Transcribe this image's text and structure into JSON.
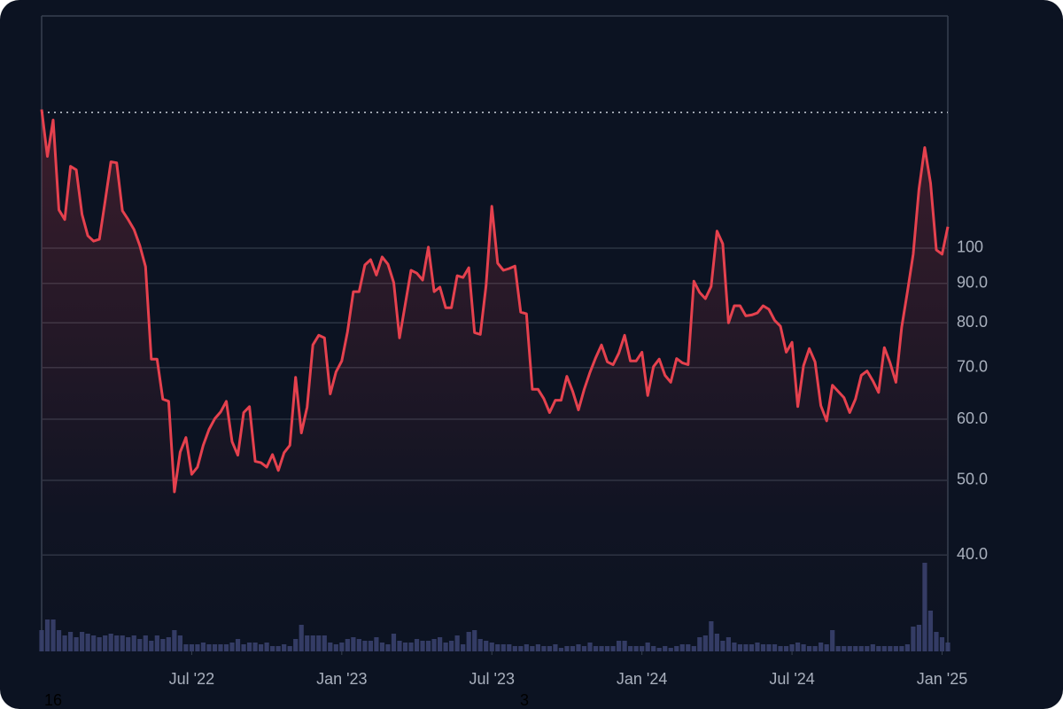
{
  "chart_data": {
    "type": "line",
    "log_scale": true,
    "grid": true,
    "color": "#e5414e",
    "reference_line": 150,
    "xlim": [
      0,
      157
    ],
    "xticks": [
      {
        "value": 26,
        "label": "Jul '22"
      },
      {
        "value": 52,
        "label": "Jan '23"
      },
      {
        "value": 78,
        "label": "Jul '23"
      },
      {
        "value": 104,
        "label": "Jan '24"
      },
      {
        "value": 130,
        "label": "Jul '24"
      },
      {
        "value": 156,
        "label": "Jan '25"
      }
    ],
    "ylim": [
      30,
      200
    ],
    "yticks": [
      {
        "value": 40,
        "label": "40.0"
      },
      {
        "value": 50,
        "label": "50.0"
      },
      {
        "value": 60,
        "label": "60.0"
      },
      {
        "value": 70,
        "label": "70.0"
      },
      {
        "value": 80,
        "label": "80.0"
      },
      {
        "value": 90,
        "label": "90.0"
      },
      100
    ],
    "values": [
      151.3,
      131.5,
      146.6,
      112.1,
      108.9,
      127.7,
      126.3,
      110.6,
      103.8,
      102.1,
      102.7,
      115.1,
      129.4,
      129.0,
      111.8,
      108.9,
      105.7,
      100.8,
      94.6,
      71.8,
      71.8,
      63.7,
      63.3,
      48.3,
      54.4,
      56.8,
      50.9,
      52.0,
      55.5,
      58.2,
      60.1,
      61.3,
      63.3,
      56.1,
      53.9,
      61.2,
      62.3,
      52.9,
      52.7,
      52.0,
      54.0,
      51.5,
      54.3,
      55.5,
      68.0,
      57.6,
      62.2,
      74.9,
      77.1,
      76.5,
      64.7,
      69.1,
      71.4,
      77.9,
      87.8,
      87.8,
      95.1,
      96.6,
      92.3,
      97.4,
      95.3,
      90.2,
      76.5,
      84.6,
      93.6,
      92.8,
      90.9,
      100.3,
      87.8,
      89.0,
      83.7,
      83.7,
      92.1,
      91.6,
      94.3,
      77.7,
      77.3,
      89.4,
      113.3,
      95.6,
      93.6,
      94.1,
      94.8,
      82.6,
      82.2,
      65.6,
      65.6,
      63.8,
      61.2,
      63.5,
      63.5,
      68.2,
      65.2,
      61.7,
      65.6,
      69.0,
      72.1,
      74.9,
      71.2,
      70.6,
      73.1,
      77.1,
      71.4,
      71.4,
      73.3,
      64.4,
      70.2,
      71.8,
      68.4,
      67.0,
      71.9,
      71.0,
      70.6,
      90.6,
      87.6,
      86.0,
      89.2,
      105.2,
      101.3,
      80.0,
      84.2,
      84.2,
      81.7,
      81.9,
      82.4,
      84.2,
      83.3,
      80.6,
      79.2,
      73.3,
      75.5,
      62.3,
      70.4,
      74.1,
      71.2,
      62.5,
      59.7,
      66.4,
      65.2,
      64.0,
      61.2,
      63.7,
      68.4,
      69.3,
      67.3,
      65.0,
      74.3,
      71.0,
      67.0,
      79.0,
      87.8,
      98.2,
      119.2,
      135.0,
      121.4,
      99.5,
      98.2,
      106.6
    ],
    "volume": {
      "color": "#39416d",
      "values": [
        24,
        36,
        36,
        24,
        18,
        22,
        16,
        22,
        20,
        18,
        16,
        18,
        20,
        18,
        18,
        16,
        18,
        14,
        18,
        12,
        18,
        14,
        16,
        24,
        18,
        8,
        8,
        8,
        10,
        8,
        8,
        8,
        8,
        10,
        14,
        8,
        10,
        10,
        8,
        10,
        6,
        6,
        8,
        6,
        14,
        30,
        18,
        18,
        18,
        18,
        10,
        8,
        10,
        14,
        16,
        14,
        12,
        12,
        16,
        10,
        8,
        20,
        12,
        10,
        10,
        14,
        12,
        12,
        14,
        16,
        10,
        12,
        18,
        8,
        22,
        24,
        14,
        12,
        10,
        8,
        8,
        8,
        6,
        6,
        8,
        6,
        8,
        6,
        6,
        8,
        4,
        6,
        6,
        8,
        6,
        10,
        6,
        6,
        6,
        6,
        12,
        12,
        6,
        6,
        6,
        10,
        6,
        4,
        6,
        4,
        6,
        8,
        8,
        6,
        16,
        18,
        34,
        20,
        12,
        16,
        10,
        8,
        8,
        8,
        10,
        8,
        8,
        8,
        6,
        6,
        8,
        10,
        8,
        6,
        6,
        10,
        8,
        24,
        6,
        6,
        6,
        6,
        6,
        6,
        8,
        6,
        6,
        6,
        6,
        6,
        8,
        28,
        30,
        100,
        46,
        22,
        16,
        10
      ]
    },
    "footer_labels": [
      "16",
      "3"
    ]
  }
}
